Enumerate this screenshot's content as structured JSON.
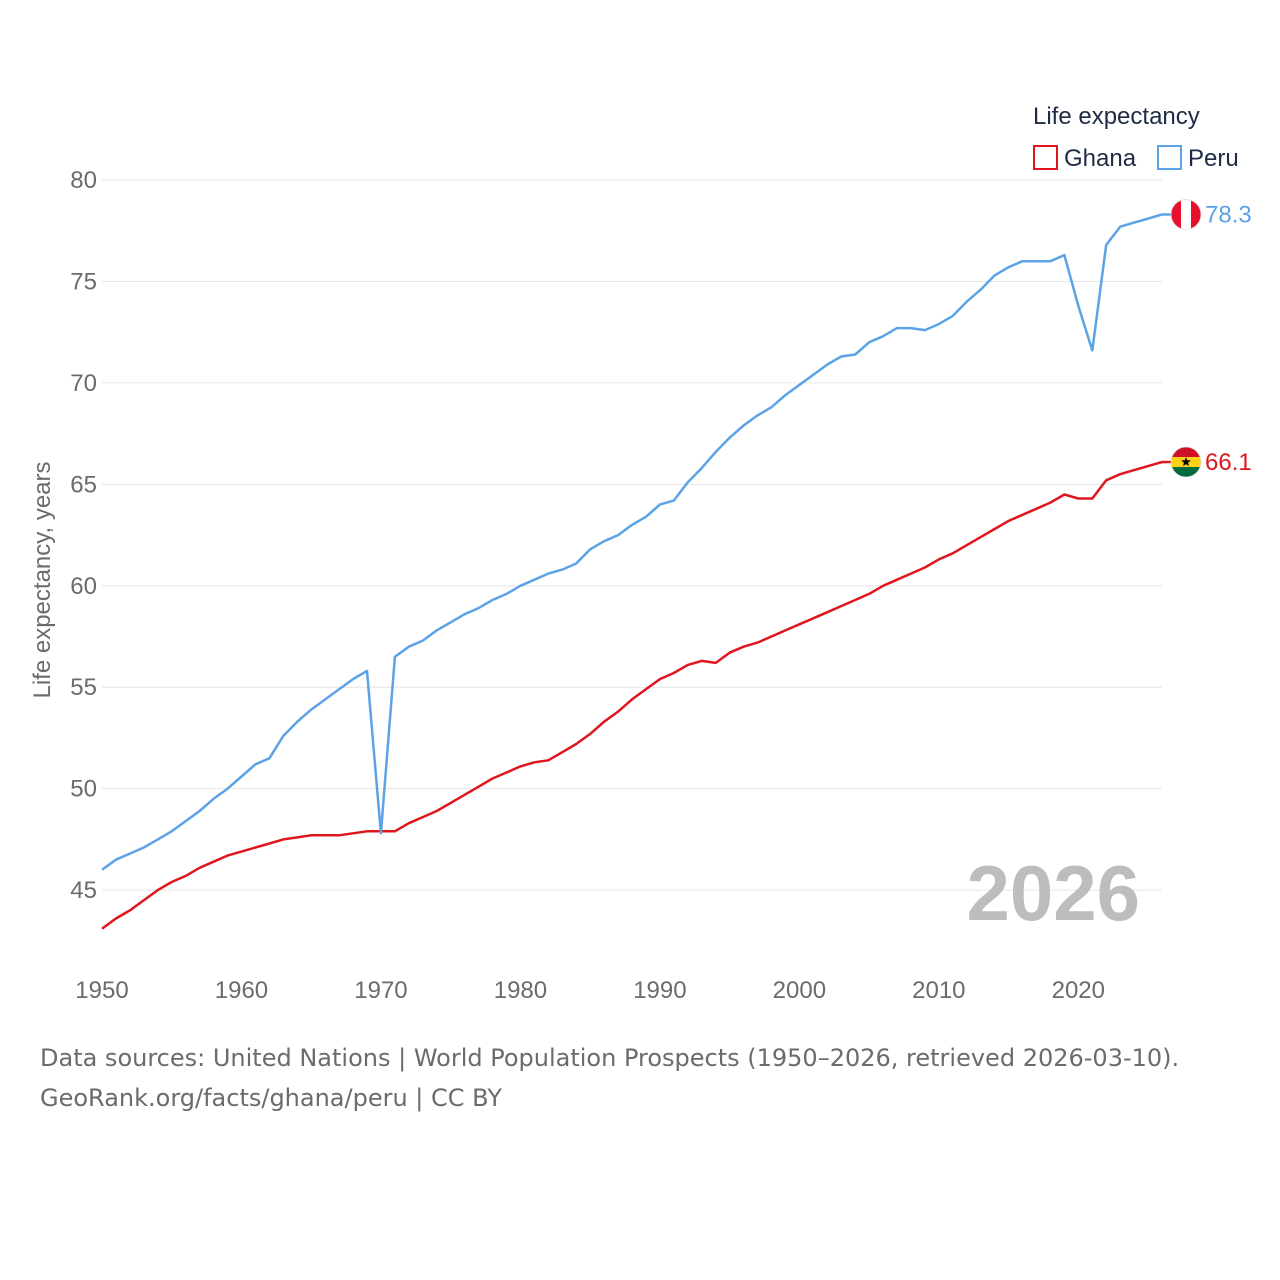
{
  "chart_data": {
    "type": "line",
    "legend_title": "Life expectancy",
    "ylabel": "Life expectancy, years",
    "xlabel": "",
    "ylim": [
      42,
      80
    ],
    "xlim": [
      1950,
      2026
    ],
    "yticks": [
      45,
      50,
      55,
      60,
      65,
      70,
      75,
      80
    ],
    "xticks": [
      1950,
      1960,
      1970,
      1980,
      1990,
      2000,
      2010,
      2020
    ],
    "grid": true,
    "legend_position": "top-right",
    "year_label": "2026",
    "x": [
      1950,
      1951,
      1952,
      1953,
      1954,
      1955,
      1956,
      1957,
      1958,
      1959,
      1960,
      1961,
      1962,
      1963,
      1964,
      1965,
      1966,
      1967,
      1968,
      1969,
      1970,
      1971,
      1972,
      1973,
      1974,
      1975,
      1976,
      1977,
      1978,
      1979,
      1980,
      1981,
      1982,
      1983,
      1984,
      1985,
      1986,
      1987,
      1988,
      1989,
      1990,
      1991,
      1992,
      1993,
      1994,
      1995,
      1996,
      1997,
      1998,
      1999,
      2000,
      2001,
      2002,
      2003,
      2004,
      2005,
      2006,
      2007,
      2008,
      2009,
      2010,
      2011,
      2012,
      2013,
      2014,
      2015,
      2016,
      2017,
      2018,
      2019,
      2020,
      2021,
      2022,
      2023,
      2024,
      2025,
      2026
    ],
    "series": [
      {
        "name": "Ghana",
        "color": "#e0161e",
        "end_label": "66.1",
        "flag": "ghana",
        "values": [
          43.1,
          43.6,
          44.0,
          44.5,
          45.0,
          45.4,
          45.7,
          46.1,
          46.4,
          46.7,
          46.9,
          47.1,
          47.3,
          47.5,
          47.6,
          47.7,
          47.7,
          47.7,
          47.8,
          47.9,
          47.9,
          47.9,
          48.3,
          48.6,
          48.9,
          49.3,
          49.7,
          50.1,
          50.5,
          50.8,
          51.1,
          51.3,
          51.4,
          51.8,
          52.2,
          52.7,
          53.3,
          53.8,
          54.4,
          54.9,
          55.4,
          55.7,
          56.1,
          56.3,
          56.2,
          56.7,
          57.0,
          57.2,
          57.5,
          57.8,
          58.1,
          58.4,
          58.7,
          59.0,
          59.3,
          59.6,
          60.0,
          60.3,
          60.6,
          60.9,
          61.3,
          61.6,
          62.0,
          62.4,
          62.8,
          63.2,
          63.5,
          63.8,
          64.1,
          64.5,
          64.3,
          64.3,
          65.2,
          65.5,
          65.7,
          65.9,
          66.1
        ]
      },
      {
        "name": "Peru",
        "color": "#5ba3e6",
        "end_label": "78.3",
        "flag": "peru",
        "values": [
          46.0,
          46.5,
          46.8,
          47.1,
          47.5,
          47.9,
          48.4,
          48.9,
          49.5,
          50.0,
          50.6,
          51.2,
          51.5,
          52.6,
          53.3,
          53.9,
          54.4,
          54.9,
          55.4,
          55.8,
          47.8,
          56.5,
          57.0,
          57.3,
          57.8,
          58.2,
          58.6,
          58.9,
          59.3,
          59.6,
          60.0,
          60.3,
          60.6,
          60.8,
          61.1,
          61.8,
          62.2,
          62.5,
          63.0,
          63.4,
          64.0,
          64.2,
          65.1,
          65.8,
          66.6,
          67.3,
          67.9,
          68.4,
          68.8,
          69.4,
          69.9,
          70.4,
          70.9,
          71.3,
          71.4,
          72.0,
          72.3,
          72.7,
          72.7,
          72.6,
          72.9,
          73.3,
          74.0,
          74.6,
          75.3,
          75.7,
          76.0,
          76.0,
          76.0,
          76.3,
          73.8,
          71.6,
          76.8,
          77.7,
          77.9,
          78.1,
          78.3
        ]
      }
    ]
  },
  "footer": {
    "line1": "Data sources: United Nations | World Population Prospects (1950–2026, retrieved 2026-03-10).",
    "line2": "GeoRank.org/facts/ghana/peru | CC BY"
  }
}
